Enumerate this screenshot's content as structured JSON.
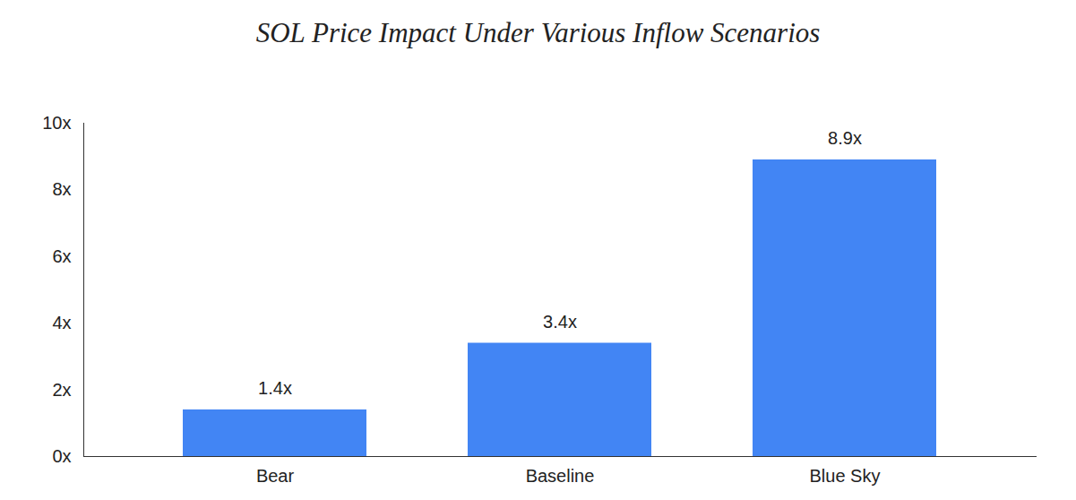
{
  "chart_data": {
    "type": "bar",
    "title": "SOL Price Impact Under Various Inflow Scenarios",
    "categories": [
      "Bear",
      "Baseline",
      "Blue Sky"
    ],
    "values": [
      1.4,
      3.4,
      8.9
    ],
    "value_labels": [
      "1.4x",
      "3.4x",
      "8.9x"
    ],
    "color": "#4285f4",
    "ylim": [
      0,
      10
    ],
    "yticks": [
      {
        "value": 0,
        "label": "0x"
      },
      {
        "value": 2,
        "label": "2x"
      },
      {
        "value": 4,
        "label": "4x"
      },
      {
        "value": 6,
        "label": "6x"
      },
      {
        "value": 8,
        "label": "8x"
      },
      {
        "value": 10,
        "label": "10x"
      }
    ],
    "grid": false,
    "data_labels": true
  }
}
